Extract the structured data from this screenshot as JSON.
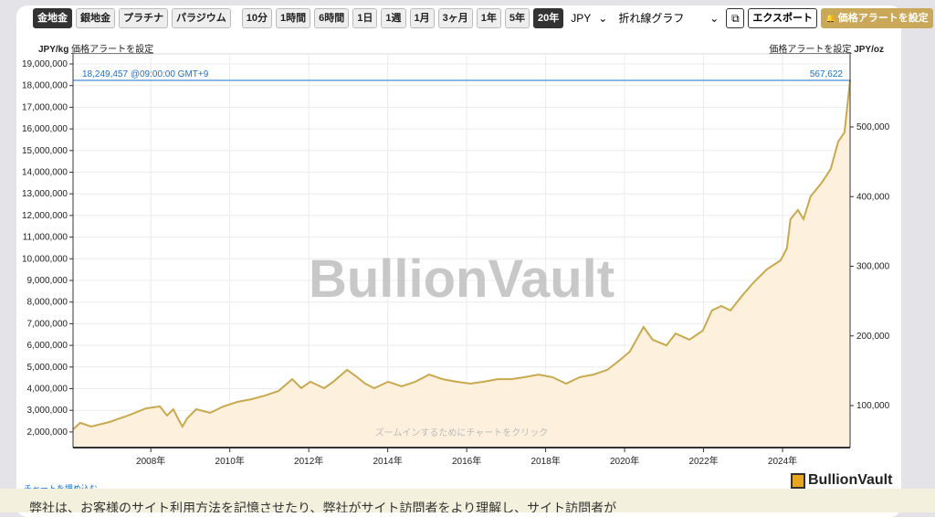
{
  "toolbar": {
    "metals": [
      {
        "label": "金地金",
        "active": true
      },
      {
        "label": "銀地金",
        "active": false
      },
      {
        "label": "プラチナ",
        "active": false
      },
      {
        "label": "パラジウム",
        "active": false
      }
    ],
    "ranges": [
      {
        "label": "10分",
        "active": false
      },
      {
        "label": "1時間",
        "active": false
      },
      {
        "label": "6時間",
        "active": false
      },
      {
        "label": "1日",
        "active": false
      },
      {
        "label": "1週",
        "active": false
      },
      {
        "label": "1月",
        "active": false
      },
      {
        "label": "3ヶ月",
        "active": false
      },
      {
        "label": "1年",
        "active": false
      },
      {
        "label": "5年",
        "active": false
      },
      {
        "label": "20年",
        "active": true
      }
    ],
    "currency": "JPY",
    "chart_type": "折れ線グラフ",
    "export_label": "エクスポート",
    "alert_label": "価格アラートを設定"
  },
  "left_unit": "JPY/kg",
  "right_unit": "JPY/oz",
  "set_alert_link": "価格アラートを設定",
  "current_label": "18,249,457 @09:00:00 GMT+9",
  "current_right": "567,622",
  "watermark": "BullionVault",
  "zoom_hint": "ズームインするためにチャートをクリック",
  "embed_link": "チャートを埋め込む",
  "logo_text": "BullionVault",
  "cookie_text": "弊社は、お客様のサイト利用方法を記憶させたり、弊社がサイト訪問者をより理解し、サイト訪問者が",
  "colors": {
    "line": "#c9a94e",
    "fill": "#fdf1de",
    "current_line": "#1a6fd0",
    "alert": "#c9a85a"
  },
  "chart_data": {
    "type": "area",
    "ylabel": "JPY/kg",
    "y2label": "JPY/oz",
    "ylim": [
      1280000,
      19000000
    ],
    "yticks": [
      "19,000,000",
      "18,000,000",
      "17,000,000",
      "16,000,000",
      "15,000,000",
      "14,000,000",
      "13,000,000",
      "12,000,000",
      "11,000,000",
      "10,000,000",
      "9,000,000",
      "8,000,000",
      "7,000,000",
      "6,000,000",
      "5,000,000",
      "4,000,000",
      "3,000,000",
      "2,000,000"
    ],
    "y2ticks": [
      "500,000",
      "400,000",
      "300,000",
      "200,000",
      "100,000"
    ],
    "xticks": [
      "2008年",
      "2010年",
      "2012年",
      "2014年",
      "2016年",
      "2018年",
      "2020年",
      "2022年",
      "2024年"
    ],
    "xlim": [
      2006.03,
      2025.71
    ],
    "grid": true,
    "x": [
      2006.03,
      2006.21,
      2006.49,
      2006.95,
      2007.42,
      2007.88,
      2008.23,
      2008.41,
      2008.57,
      2008.71,
      2008.8,
      2008.92,
      2009.15,
      2009.5,
      2009.84,
      2010.19,
      2010.54,
      2010.89,
      2011.23,
      2011.58,
      2011.81,
      2012.04,
      2012.39,
      2012.62,
      2012.97,
      2013.2,
      2013.43,
      2013.66,
      2014.01,
      2014.35,
      2014.7,
      2015.05,
      2015.39,
      2015.74,
      2016.09,
      2016.43,
      2016.78,
      2017.13,
      2017.47,
      2017.82,
      2018.17,
      2018.52,
      2018.86,
      2019.21,
      2019.56,
      2019.86,
      2020.13,
      2020.48,
      2020.71,
      2021.06,
      2021.29,
      2021.64,
      2021.98,
      2022.21,
      2022.45,
      2022.68,
      2022.95,
      2023.25,
      2023.6,
      2023.95,
      2024.11,
      2024.2,
      2024.39,
      2024.53,
      2024.71,
      2024.99,
      2025.22,
      2025.41,
      2025.57,
      2025.71
    ],
    "y": [
      2120000,
      2420000,
      2250000,
      2460000,
      2760000,
      3090000,
      3180000,
      2760000,
      3050000,
      2540000,
      2250000,
      2630000,
      3050000,
      2880000,
      3180000,
      3390000,
      3510000,
      3680000,
      3890000,
      4440000,
      4020000,
      4320000,
      4020000,
      4320000,
      4870000,
      4570000,
      4230000,
      4020000,
      4320000,
      4110000,
      4320000,
      4650000,
      4440000,
      4320000,
      4230000,
      4320000,
      4440000,
      4440000,
      4530000,
      4650000,
      4530000,
      4230000,
      4530000,
      4650000,
      4870000,
      5290000,
      5710000,
      6850000,
      6260000,
      6000000,
      6550000,
      6260000,
      6680000,
      7610000,
      7820000,
      7610000,
      8240000,
      8870000,
      9510000,
      9930000,
      10480000,
      11830000,
      12250000,
      11830000,
      12880000,
      13510000,
      14150000,
      15410000,
      15840000,
      18249457
    ]
  }
}
